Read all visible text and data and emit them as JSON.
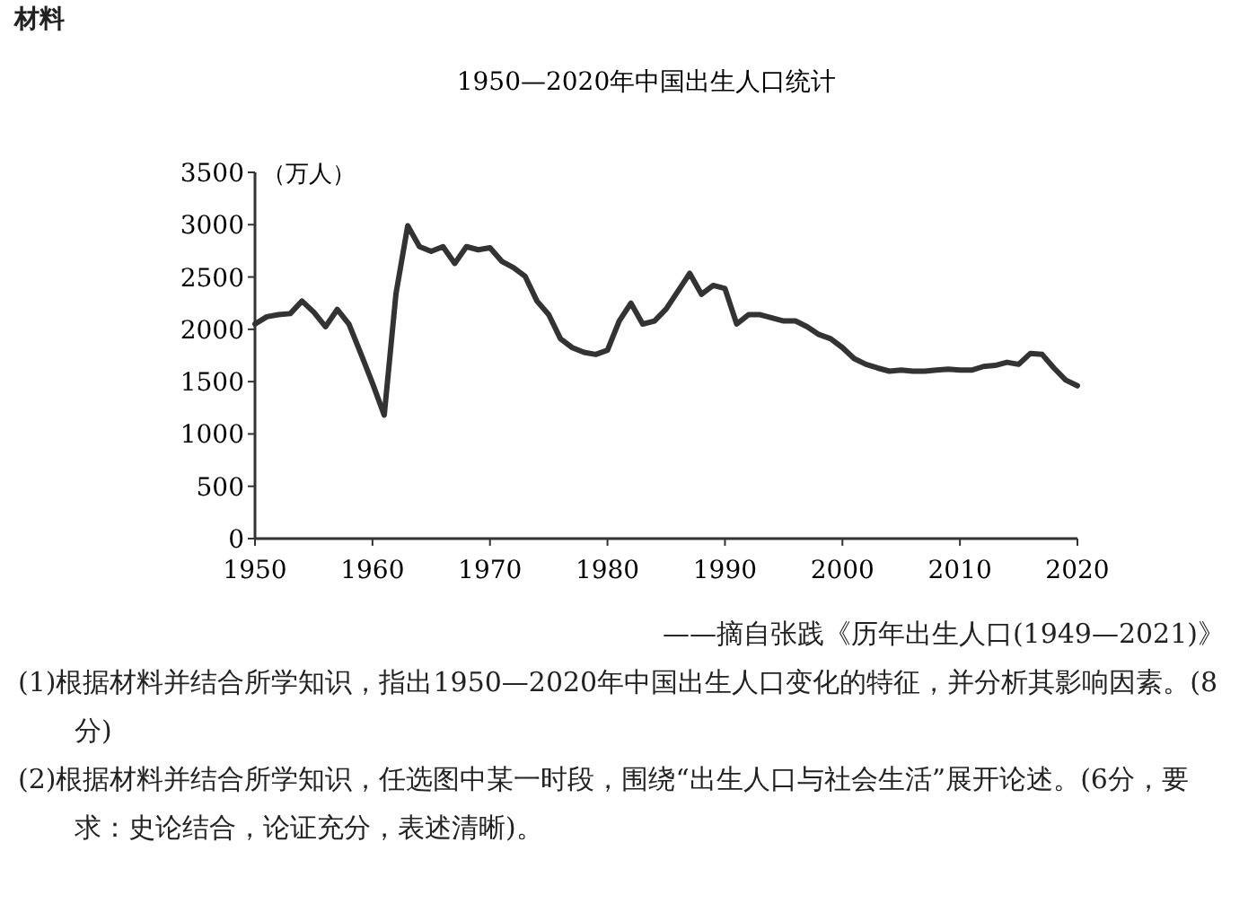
{
  "chart_data": {
    "type": "line",
    "title": "1950—2020年中国出生人口统计",
    "ylabel": "（万人）",
    "annotations": [
      "材料",
      "——摘自张践《历年出生人口(1949—2021)》",
      "(1)根据材料并结合所学知识，指出1950—2020年中国出生人口变化的特征，并分析其影响因素。(8分)",
      "(2)根据材料并结合所学知识，任选图中某一时段，围绕“出生人口与社会生活”展开论述。(6分，要求：史论结合，论证充分，表述清晰)。"
    ],
    "x": [
      1950,
      1951,
      1952,
      1953,
      1954,
      1955,
      1956,
      1957,
      1958,
      1959,
      1960,
      1961,
      1962,
      1963,
      1964,
      1965,
      1966,
      1967,
      1968,
      1969,
      1970,
      1971,
      1972,
      1973,
      1974,
      1975,
      1976,
      1977,
      1978,
      1979,
      1980,
      1981,
      1982,
      1983,
      1984,
      1985,
      1986,
      1987,
      1988,
      1989,
      1990,
      1991,
      1992,
      1993,
      1994,
      1995,
      1996,
      1997,
      1998,
      1999,
      2000,
      2001,
      2002,
      2003,
      2004,
      2005,
      2006,
      2007,
      2008,
      2009,
      2010,
      2011,
      2012,
      2013,
      2014,
      2015,
      2016,
      2017,
      2018,
      2019,
      2020
    ],
    "values": [
      2050,
      2120,
      2140,
      2150,
      2270,
      2165,
      2025,
      2190,
      2050,
      1770,
      1485,
      1180,
      2340,
      2990,
      2790,
      2745,
      2790,
      2630,
      2790,
      2760,
      2780,
      2650,
      2590,
      2505,
      2270,
      2140,
      1910,
      1825,
      1780,
      1760,
      1800,
      2080,
      2250,
      2050,
      2080,
      2195,
      2365,
      2535,
      2335,
      2420,
      2390,
      2050,
      2140,
      2140,
      2110,
      2080,
      2080,
      2025,
      1950,
      1910,
      1825,
      1720,
      1665,
      1630,
      1600,
      1610,
      1600,
      1600,
      1610,
      1620,
      1610,
      1610,
      1645,
      1655,
      1685,
      1665,
      1770,
      1760,
      1630,
      1515,
      1460
    ],
    "color": "#333333",
    "xlim": [
      1950,
      2020
    ],
    "ylim": [
      0,
      3500
    ],
    "xticks": [
      1950,
      1960,
      1970,
      1980,
      1990,
      2000,
      2010,
      2020
    ],
    "yticks": [
      0,
      500,
      1000,
      1500,
      2000,
      2500,
      3000,
      3500
    ]
  }
}
